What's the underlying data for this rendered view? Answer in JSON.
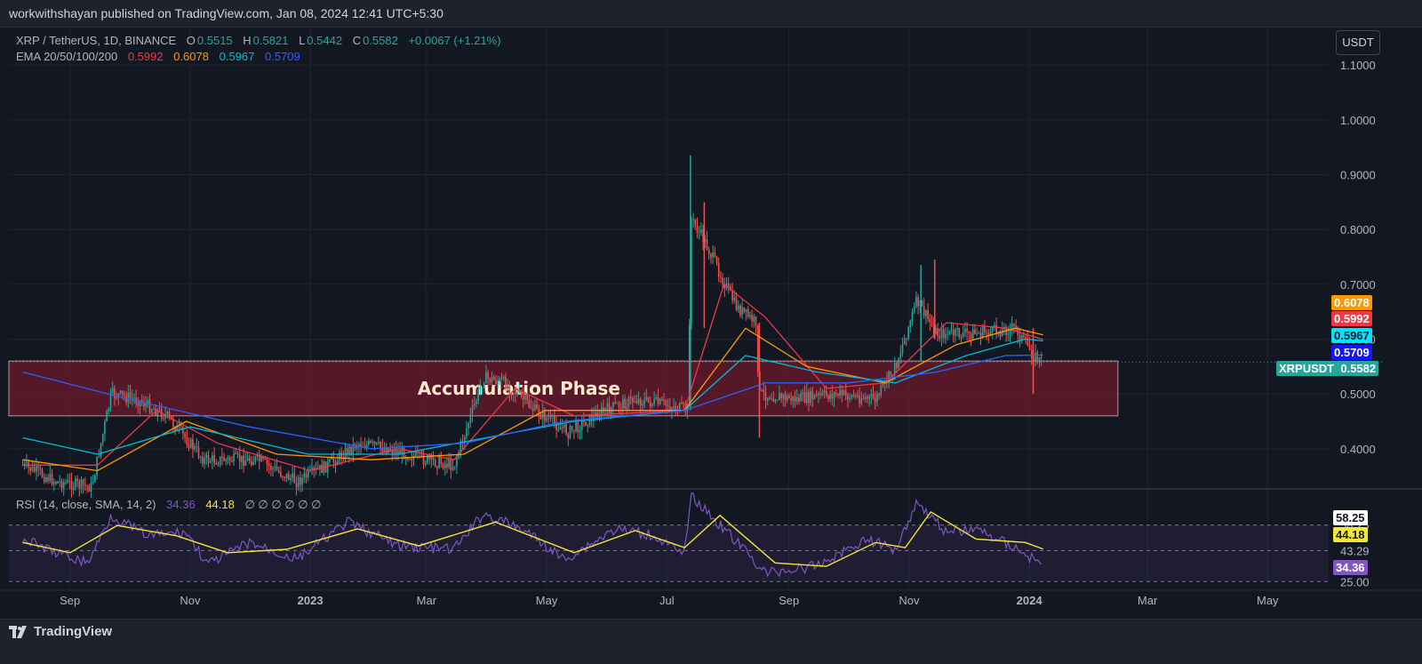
{
  "header": {
    "publisher": "workwithshayan published on TradingView.com, Jan 08, 2024 12:41 UTC+5:30"
  },
  "legend": {
    "symbol": "XRP / TetherUS, 1D, BINANCE",
    "o_label": "O",
    "o_value": "0.5515",
    "h_label": "H",
    "h_value": "0.5821",
    "l_label": "L",
    "l_value": "0.5442",
    "c_label": "C",
    "c_value": "0.5582",
    "change": "+0.0067 (+1.21%)",
    "ema_label": "EMA 20/50/100/200",
    "ema20": "0.5992",
    "ema50": "0.6078",
    "ema100": "0.5967",
    "ema200": "0.5709"
  },
  "unit_button": "USDT",
  "annotation": "Accumulation Phase",
  "price_tags": {
    "ema50": "0.6078",
    "ema20": "0.5992",
    "ema100": "0.5967",
    "ema200": "0.5709",
    "symbol_name": "XRPUSDT",
    "last": "0.5582"
  },
  "rsi": {
    "label": "RSI (14, close, SMA, 14, 2)",
    "value": "34.36",
    "sma": "44.18",
    "extras": "∅ ∅ ∅ ∅ ∅ ∅",
    "tags": [
      "58.25",
      "44.18",
      "43.29",
      "34.36",
      "25.00"
    ]
  },
  "footer": {
    "brand": "TradingView"
  },
  "colors": {
    "background": "#131722",
    "up": "#26a69a",
    "down": "#ef5350",
    "ema20": "#f23645",
    "ema50": "#ff9800",
    "ema100": "#00bcd4",
    "ema200": "#2962ff",
    "zone": "#8b1a2e",
    "rsi": "#7e57c2",
    "rsi_sma": "#f5e53a"
  },
  "chart_data": {
    "type": "candlestick",
    "x_ticks": [
      "Sep",
      "Nov",
      "2023",
      "Mar",
      "May",
      "Jul",
      "Sep",
      "Nov",
      "2024",
      "Mar",
      "May"
    ],
    "y_ticks": [
      "0.4000",
      "0.5000",
      "0.6000",
      "0.7000",
      "0.8000",
      "0.9000",
      "1.0000",
      "1.1000"
    ],
    "ylim": [
      0.33,
      1.17
    ],
    "accumulation_zone": {
      "low": 0.46,
      "high": 0.56,
      "x_start": "2022-08",
      "x_end": "2024-02"
    },
    "last_price": 0.5582,
    "price_path": [
      [
        "2022-08-08",
        0.37
      ],
      [
        "2022-08-25",
        0.34
      ],
      [
        "2022-09-12",
        0.33
      ],
      [
        "2022-09-22",
        0.5
      ],
      [
        "2022-10-05",
        0.49
      ],
      [
        "2022-10-20",
        0.46
      ],
      [
        "2022-11-08",
        0.38
      ],
      [
        "2022-11-22",
        0.38
      ],
      [
        "2022-12-05",
        0.38
      ],
      [
        "2022-12-25",
        0.34
      ],
      [
        "2023-01-10",
        0.37
      ],
      [
        "2023-01-25",
        0.41
      ],
      [
        "2023-02-10",
        0.4
      ],
      [
        "2023-02-28",
        0.38
      ],
      [
        "2023-03-15",
        0.37
      ],
      [
        "2023-03-30",
        0.53
      ],
      [
        "2023-04-10",
        0.52
      ],
      [
        "2023-04-25",
        0.47
      ],
      [
        "2023-05-12",
        0.43
      ],
      [
        "2023-05-30",
        0.47
      ],
      [
        "2023-06-15",
        0.49
      ],
      [
        "2023-06-30",
        0.48
      ],
      [
        "2023-07-12",
        0.47
      ],
      [
        "2023-07-13",
        0.82
      ],
      [
        "2023-07-20",
        0.78
      ],
      [
        "2023-08-05",
        0.66
      ],
      [
        "2023-08-15",
        0.63
      ],
      [
        "2023-08-17",
        0.5
      ],
      [
        "2023-09-05",
        0.49
      ],
      [
        "2023-09-25",
        0.5
      ],
      [
        "2023-10-15",
        0.49
      ],
      [
        "2023-10-25",
        0.55
      ],
      [
        "2023-11-05",
        0.67
      ],
      [
        "2023-11-15",
        0.61
      ],
      [
        "2023-12-05",
        0.61
      ],
      [
        "2023-12-25",
        0.62
      ],
      [
        "2024-01-03",
        0.57
      ],
      [
        "2024-01-08",
        0.5582
      ]
    ],
    "ema_paths": {
      "ema20": [
        [
          "2022-08-08",
          0.37
        ],
        [
          "2022-09-15",
          0.37
        ],
        [
          "2022-10-15",
          0.47
        ],
        [
          "2022-11-15",
          0.41
        ],
        [
          "2023-01-01",
          0.36
        ],
        [
          "2023-02-15",
          0.4
        ],
        [
          "2023-03-15",
          0.38
        ],
        [
          "2023-04-15",
          0.51
        ],
        [
          "2023-05-15",
          0.46
        ],
        [
          "2023-07-10",
          0.47
        ],
        [
          "2023-07-30",
          0.7
        ],
        [
          "2023-08-20",
          0.64
        ],
        [
          "2023-09-20",
          0.51
        ],
        [
          "2023-10-20",
          0.52
        ],
        [
          "2023-11-20",
          0.63
        ],
        [
          "2023-12-20",
          0.62
        ],
        [
          "2024-01-08",
          0.5992
        ]
      ],
      "ema50": [
        [
          "2022-08-08",
          0.38
        ],
        [
          "2022-09-15",
          0.36
        ],
        [
          "2022-10-30",
          0.45
        ],
        [
          "2022-12-15",
          0.39
        ],
        [
          "2023-02-01",
          0.38
        ],
        [
          "2023-03-20",
          0.39
        ],
        [
          "2023-04-30",
          0.47
        ],
        [
          "2023-06-15",
          0.47
        ],
        [
          "2023-07-10",
          0.47
        ],
        [
          "2023-08-10",
          0.62
        ],
        [
          "2023-09-10",
          0.55
        ],
        [
          "2023-10-20",
          0.52
        ],
        [
          "2023-11-25",
          0.59
        ],
        [
          "2023-12-25",
          0.62
        ],
        [
          "2024-01-08",
          0.6078
        ]
      ],
      "ema100": [
        [
          "2022-08-08",
          0.42
        ],
        [
          "2022-09-15",
          0.39
        ],
        [
          "2022-11-01",
          0.44
        ],
        [
          "2022-12-31",
          0.39
        ],
        [
          "2023-02-15",
          0.39
        ],
        [
          "2023-03-31",
          0.42
        ],
        [
          "2023-05-15",
          0.45
        ],
        [
          "2023-07-10",
          0.47
        ],
        [
          "2023-08-10",
          0.57
        ],
        [
          "2023-09-15",
          0.54
        ],
        [
          "2023-10-25",
          0.52
        ],
        [
          "2023-11-30",
          0.57
        ],
        [
          "2023-12-30",
          0.6
        ],
        [
          "2024-01-08",
          0.5967
        ]
      ],
      "ema200": [
        [
          "2022-08-08",
          0.54
        ],
        [
          "2022-10-01",
          0.49
        ],
        [
          "2022-12-01",
          0.44
        ],
        [
          "2023-02-01",
          0.4
        ],
        [
          "2023-03-20",
          0.41
        ],
        [
          "2023-05-10",
          0.45
        ],
        [
          "2023-07-10",
          0.47
        ],
        [
          "2023-08-20",
          0.52
        ],
        [
          "2023-10-01",
          0.52
        ],
        [
          "2023-11-15",
          0.54
        ],
        [
          "2023-12-20",
          0.57
        ],
        [
          "2024-01-08",
          0.5709
        ]
      ]
    },
    "rsi_ticks": [
      "58.25",
      "43.29",
      "25.00"
    ],
    "rsi_ylim": [
      22,
      78
    ],
    "rsi_path": [
      [
        "2022-08-08",
        50
      ],
      [
        "2022-08-25",
        42
      ],
      [
        "2022-09-10",
        36
      ],
      [
        "2022-09-22",
        64
      ],
      [
        "2022-10-10",
        52
      ],
      [
        "2022-10-30",
        54
      ],
      [
        "2022-11-10",
        35
      ],
      [
        "2022-12-01",
        48
      ],
      [
        "2022-12-25",
        38
      ],
      [
        "2023-01-20",
        60
      ],
      [
        "2023-02-15",
        46
      ],
      [
        "2023-03-15",
        44
      ],
      [
        "2023-03-30",
        65
      ],
      [
        "2023-04-20",
        55
      ],
      [
        "2023-05-10",
        38
      ],
      [
        "2023-06-05",
        56
      ],
      [
        "2023-06-25",
        52
      ],
      [
        "2023-07-10",
        40
      ],
      [
        "2023-07-13",
        76
      ],
      [
        "2023-08-10",
        43
      ],
      [
        "2023-08-20",
        30
      ],
      [
        "2023-09-15",
        34
      ],
      [
        "2023-10-10",
        50
      ],
      [
        "2023-10-25",
        44
      ],
      [
        "2023-11-05",
        72
      ],
      [
        "2023-11-20",
        54
      ],
      [
        "2023-12-05",
        56
      ],
      [
        "2023-12-25",
        45
      ],
      [
        "2024-01-08",
        34.36
      ]
    ],
    "rsi_sma_path": [
      [
        "2022-08-08",
        48
      ],
      [
        "2022-09-01",
        42
      ],
      [
        "2022-09-25",
        58
      ],
      [
        "2022-10-25",
        52
      ],
      [
        "2022-11-20",
        42
      ],
      [
        "2022-12-20",
        44
      ],
      [
        "2023-01-25",
        56
      ],
      [
        "2023-02-25",
        46
      ],
      [
        "2023-04-05",
        60
      ],
      [
        "2023-05-15",
        42
      ],
      [
        "2023-06-15",
        55
      ],
      [
        "2023-07-10",
        45
      ],
      [
        "2023-07-28",
        64
      ],
      [
        "2023-08-25",
        36
      ],
      [
        "2023-09-20",
        34
      ],
      [
        "2023-10-15",
        48
      ],
      [
        "2023-10-30",
        45
      ],
      [
        "2023-11-12",
        66
      ],
      [
        "2023-12-05",
        50
      ],
      [
        "2023-12-30",
        48
      ],
      [
        "2024-01-08",
        44.18
      ]
    ]
  }
}
